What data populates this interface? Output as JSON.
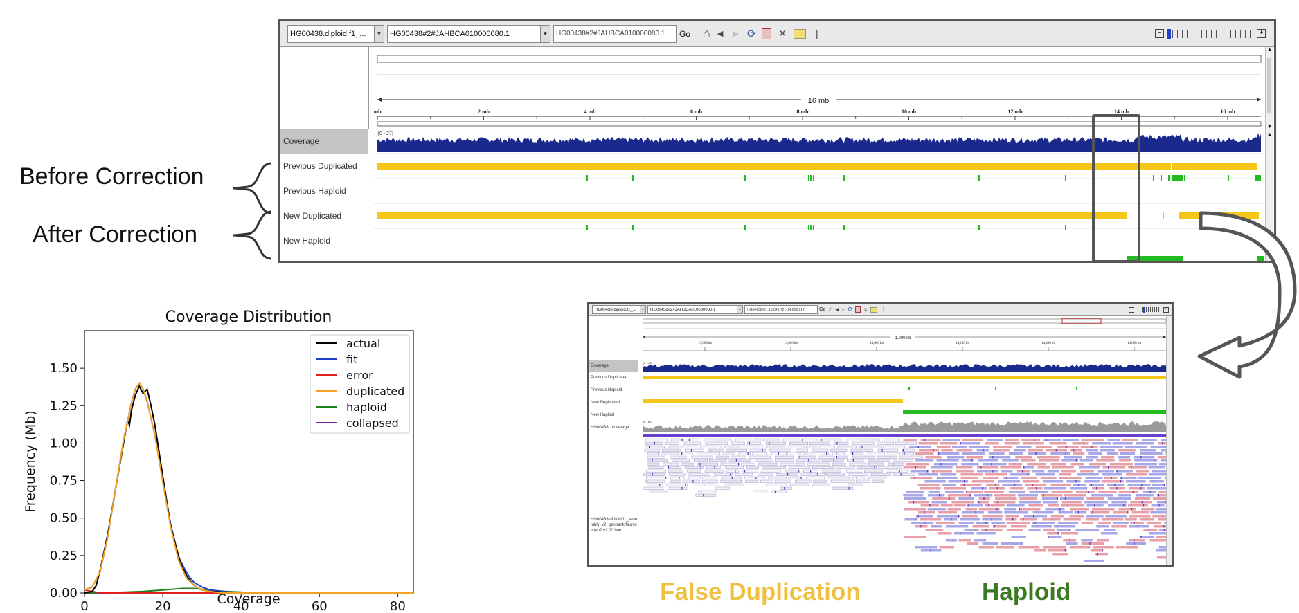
{
  "annotations": {
    "before": "Before Correction",
    "after": "After Correction",
    "false_dup": "False Duplication",
    "haploid": "Haploid"
  },
  "colors": {
    "duplicated": "#f5c518",
    "haploid": "#22bb22",
    "coverage": "#1a2a8c",
    "false_dup_text": "#f0c040",
    "haploid_text": "#3a7a20",
    "highlight_box": "#555555"
  },
  "igv_main": {
    "genome_dropdown": "HG00438.diploid.f1_...",
    "chrom_dropdown": "HG00438#2#JAHBCA010000080.1",
    "locus_input": "HG00438#2#JAHBCA010000080.1",
    "go_label": "Go",
    "ruler_span": "16 mb",
    "ruler_ticks": [
      "mb",
      "2 mb",
      "4 mb",
      "6 mb",
      "8 mb",
      "10 mb",
      "12 mb",
      "14 mb",
      "16 mb"
    ],
    "coverage_range": "[0 - 27]",
    "tracks": [
      "Coverage",
      "Previous Duplicated",
      "Previous Haploid",
      "New Duplicated",
      "New Haploid"
    ],
    "toolbar_icons": [
      "home-icon",
      "back-icon",
      "forward-icon",
      "refresh-icon",
      "roi-icon",
      "close-x-icon",
      "popup-text-icon"
    ]
  },
  "igv_zoom": {
    "genome_dropdown": "HG00438.diploid.f1_...",
    "chrom_dropdown": "HG00438#2#JAHBCA010000080.1",
    "locus_input": "HG00438#2...13,849,721-14,856,217",
    "go_label": "Go",
    "ruler_span": "1,200 kb",
    "ruler_ticks": [
      "13,600 kb",
      "13,800 kb",
      "14,000 kb",
      "14,200 kb",
      "14,400 kb",
      "14,600 kb"
    ],
    "coverage_range": "[0 - 45]",
    "bam_coverage_range": "[0 - 60]",
    "tracks": [
      "Coverage",
      "Previous Duplicated",
      "Previous Haploid",
      "New Duplicated",
      "New Haploid",
      "HG00438...coverage"
    ],
    "bam_label": "HG00438.diploid.f1_assembly_v2_genbank.fa.minimap2.v2.00.bam"
  },
  "chart_data": {
    "type": "line",
    "title": "Coverage Distribution",
    "xlabel": "Coverage",
    "ylabel": "Frequency (Mb)",
    "xlim": [
      0,
      84
    ],
    "ylim": [
      0,
      1.75
    ],
    "xticks": [
      "0",
      "20",
      "40",
      "60",
      "80"
    ],
    "yticks": [
      "0.00",
      "0.25",
      "0.50",
      "0.75",
      "1.00",
      "1.25",
      "1.50"
    ],
    "legend_position": "top-right",
    "series": [
      {
        "name": "actual",
        "color": "#000000",
        "x": [
          0,
          2,
          3,
          4,
          6,
          8,
          10,
          11,
          11.5,
          12,
          13,
          14,
          15,
          16,
          17,
          18,
          20,
          22,
          24,
          25,
          26,
          27,
          28,
          30,
          32,
          35,
          40,
          50,
          84
        ],
        "y": [
          0,
          0.01,
          0.05,
          0.15,
          0.4,
          0.7,
          1.0,
          1.15,
          1.12,
          1.22,
          1.32,
          1.38,
          1.33,
          1.36,
          1.25,
          1.12,
          0.78,
          0.45,
          0.25,
          0.17,
          0.12,
          0.08,
          0.05,
          0.02,
          0.01,
          0.005,
          0,
          0,
          0
        ]
      },
      {
        "name": "fit",
        "color": "#1f3fd0",
        "x": [
          0,
          2,
          4,
          6,
          8,
          10,
          12,
          13,
          14,
          15,
          16,
          18,
          20,
          22,
          24,
          26,
          27,
          28,
          30,
          32,
          35,
          40,
          50,
          84
        ],
        "y": [
          0.02,
          0.04,
          0.14,
          0.38,
          0.7,
          1.02,
          1.27,
          1.36,
          1.4,
          1.36,
          1.28,
          1.05,
          0.75,
          0.46,
          0.24,
          0.14,
          0.1,
          0.07,
          0.04,
          0.02,
          0.01,
          0,
          0,
          0
        ]
      },
      {
        "name": "error",
        "color": "#e02020",
        "x": [
          0,
          2,
          3,
          5,
          84
        ],
        "y": [
          0.02,
          0.01,
          0.005,
          0,
          0
        ]
      },
      {
        "name": "duplicated",
        "color": "#f5a020",
        "x": [
          0,
          2,
          4,
          6,
          8,
          10,
          12,
          13,
          14,
          15,
          16,
          18,
          20,
          22,
          24,
          26,
          28,
          30,
          32,
          35,
          40,
          84
        ],
        "y": [
          0.02,
          0.04,
          0.14,
          0.38,
          0.7,
          1.02,
          1.27,
          1.36,
          1.4,
          1.36,
          1.28,
          1.05,
          0.74,
          0.44,
          0.22,
          0.1,
          0.05,
          0.02,
          0.01,
          0,
          0,
          0
        ]
      },
      {
        "name": "haploid",
        "color": "#208020",
        "x": [
          0,
          10,
          15,
          20,
          25,
          28,
          32,
          36,
          42,
          50,
          84
        ],
        "y": [
          0,
          0.005,
          0.01,
          0.02,
          0.03,
          0.03,
          0.02,
          0.01,
          0.003,
          0,
          0
        ]
      },
      {
        "name": "collapsed",
        "color": "#7a1f9a",
        "x": [
          0,
          84
        ],
        "y": [
          0,
          0
        ]
      }
    ]
  }
}
